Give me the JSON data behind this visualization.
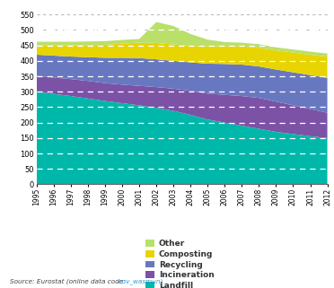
{
  "years": [
    1995,
    1996,
    1997,
    1998,
    1999,
    2000,
    2001,
    2002,
    2003,
    2004,
    2005,
    2006,
    2007,
    2008,
    2009,
    2010,
    2011,
    2012
  ],
  "landfill": [
    300,
    293,
    286,
    278,
    270,
    263,
    256,
    248,
    238,
    225,
    210,
    200,
    190,
    180,
    170,
    163,
    156,
    150
  ],
  "incineration": [
    52,
    53,
    55,
    57,
    58,
    60,
    63,
    67,
    72,
    78,
    84,
    90,
    96,
    100,
    98,
    93,
    88,
    82
  ],
  "recycling": [
    68,
    71,
    73,
    77,
    82,
    87,
    90,
    90,
    90,
    92,
    97,
    100,
    102,
    102,
    104,
    107,
    110,
    113
  ],
  "composting": [
    30,
    33,
    36,
    39,
    42,
    46,
    50,
    53,
    53,
    54,
    56,
    57,
    59,
    61,
    62,
    64,
    66,
    69
  ],
  "other": [
    12,
    12,
    12,
    12,
    12,
    12,
    12,
    68,
    60,
    38,
    22,
    14,
    12,
    11,
    10,
    10,
    10,
    10
  ],
  "stack_colors": [
    "#00b8aa",
    "#7b52a6",
    "#6878c0",
    "#e8d400",
    "#b8e06a"
  ],
  "ylim": [
    0,
    560
  ],
  "yticks": [
    0,
    50,
    100,
    150,
    200,
    250,
    300,
    350,
    400,
    450,
    500,
    550
  ],
  "background_color": "#ffffff",
  "gray_grid_color": "#aaaaaa",
  "white_grid_color": "#ffffff",
  "source_italic": "Source: ",
  "source_normal": "Eurostat (online data code: ",
  "source_link": "env_wasmun",
  "source_link_color": "#3399cc",
  "legend_labels": [
    "Other",
    "Composting",
    "Recycling",
    "Incineration",
    "Landfill"
  ],
  "legend_colors": [
    "#b8e06a",
    "#e8d400",
    "#6878c0",
    "#7b52a6",
    "#00b8aa"
  ]
}
